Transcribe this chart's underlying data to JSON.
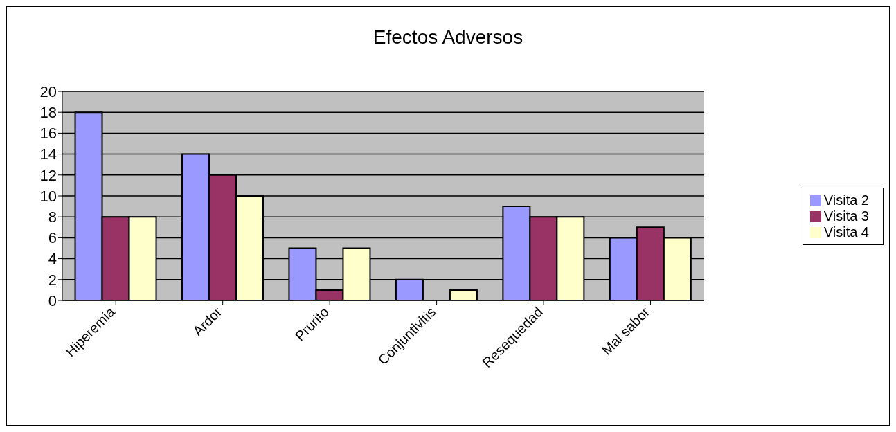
{
  "chart_data": {
    "type": "bar",
    "title": "Efectos Adversos",
    "categories": [
      "Hiperemia",
      "Ardor",
      "Prurito",
      "Conjuntivitis",
      "Resequedad",
      "Mal sabor"
    ],
    "series": [
      {
        "name": "Visita 2",
        "color": "#9999ff",
        "values": [
          18,
          14,
          5,
          2,
          9,
          6
        ]
      },
      {
        "name": "Visita 3",
        "color": "#993366",
        "values": [
          8,
          12,
          1,
          0,
          8,
          7
        ]
      },
      {
        "name": "Visita 4",
        "color": "#ffffcc",
        "values": [
          8,
          10,
          5,
          1,
          8,
          6
        ]
      }
    ],
    "ylim": [
      0,
      20
    ],
    "yticks": [
      0,
      2,
      4,
      6,
      8,
      10,
      12,
      14,
      16,
      18,
      20
    ],
    "grid": "y",
    "legend": "right"
  }
}
